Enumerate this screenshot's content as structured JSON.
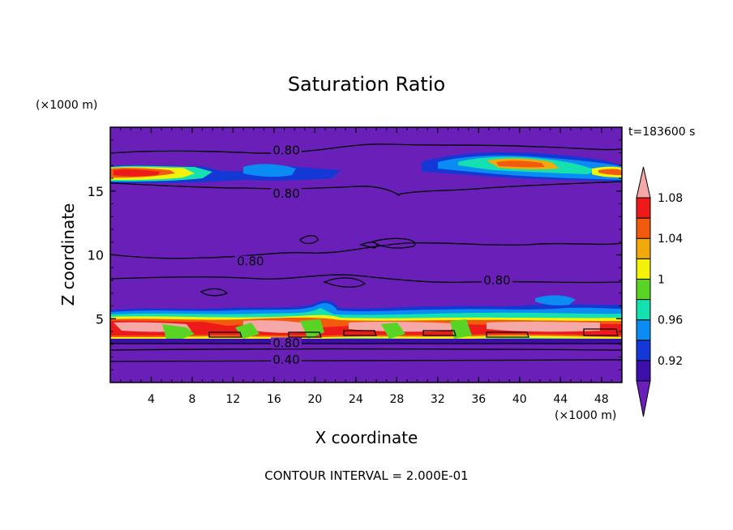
{
  "chart_data": {
    "type": "heatmap",
    "title": "Saturation Ratio",
    "xlabel": "X coordinate",
    "ylabel": "Z coordinate",
    "x_unit": "(×1000 m)",
    "y_unit": "(×1000 m)",
    "time_label": "t=183600 s",
    "footer": "CONTOUR INTERVAL = 2.000E-01",
    "xlim": [
      0,
      50
    ],
    "ylim": [
      0,
      20
    ],
    "x_ticks": [
      4,
      8,
      12,
      16,
      20,
      24,
      28,
      32,
      36,
      40,
      44,
      48
    ],
    "y_ticks": [
      5,
      10,
      15
    ],
    "contour_interval": 0.2,
    "contour_labels": [
      {
        "text": "0.80",
        "x": 17.2,
        "z": 18.0
      },
      {
        "text": "0.80",
        "x": 17.2,
        "z": 14.6
      },
      {
        "text": "0.80",
        "x": 13.7,
        "z": 9.3
      },
      {
        "text": "0.80",
        "x": 37.8,
        "z": 7.8
      },
      {
        "text": "0.80",
        "x": 17.2,
        "z": 2.9
      },
      {
        "text": "0.40",
        "x": 17.2,
        "z": 1.6
      }
    ],
    "colorbar": {
      "labels": [
        "1.08",
        "1.04",
        "1",
        "0.96",
        "0.92"
      ],
      "levels": [
        0.9,
        0.92,
        0.94,
        0.96,
        0.98,
        1.0,
        1.02,
        1.04,
        1.06,
        1.08,
        1.1
      ],
      "colors": [
        "#6a1fb8",
        "#3b0fa8",
        "#1438d6",
        "#0a8cf2",
        "#14e0b0",
        "#5ad424",
        "#f2f20a",
        "#f2aa0a",
        "#f25a10",
        "#ee1a1a",
        "#f5a8a8"
      ]
    }
  }
}
